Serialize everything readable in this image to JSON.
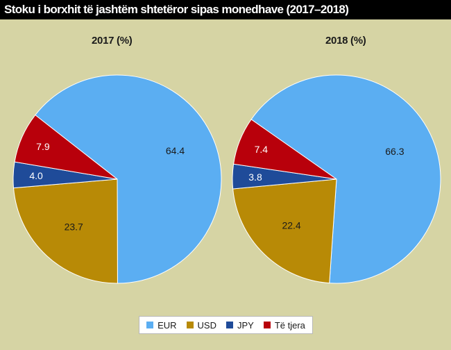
{
  "header": {
    "title": "Stoku i borxhit të jashtëm shtetëror sipas monedhave (2017–2018)"
  },
  "colors": {
    "background": "#d6d4a4",
    "EUR": "#5baef2",
    "USD": "#b88a06",
    "JPY": "#1f4b99",
    "Të tjera": "#b8000b"
  },
  "chart_data": [
    {
      "type": "pie",
      "title": "2017 (%)",
      "categories": [
        "EUR",
        "USD",
        "JPY",
        "Të tjera"
      ],
      "values": [
        64.4,
        23.7,
        4.0,
        7.9
      ],
      "labels": [
        "64.4",
        "23.7",
        "4.0",
        "7.9"
      ]
    },
    {
      "type": "pie",
      "title": "2018 (%)",
      "categories": [
        "EUR",
        "USD",
        "JPY",
        "Të tjera"
      ],
      "values": [
        66.3,
        22.4,
        3.8,
        7.4
      ],
      "labels": [
        "66.3",
        "22.4",
        "3.8",
        "7.4"
      ]
    }
  ],
  "legend": {
    "items": [
      {
        "label": "EUR",
        "color": "#5baef2"
      },
      {
        "label": "USD",
        "color": "#b88a06"
      },
      {
        "label": "JPY",
        "color": "#1f4b99"
      },
      {
        "label": "Të tjera",
        "color": "#b8000b"
      }
    ]
  }
}
